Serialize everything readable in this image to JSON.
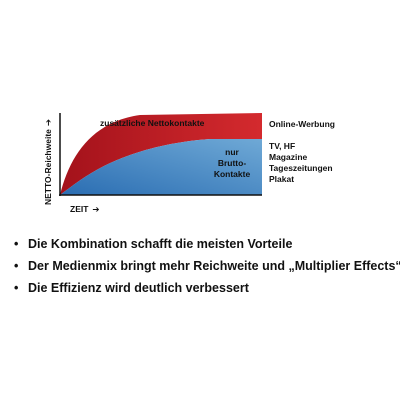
{
  "chart_data": {
    "type": "area",
    "xlabel": "ZEIT",
    "ylabel": "NETTO-Reichweite",
    "arrow_glyph": "➔",
    "series": [
      {
        "name": "zusätzliche Nettokontakte",
        "color": "#cc1f27"
      },
      {
        "name": "nur Brutto-Kontakte",
        "color": "#3a80bf"
      }
    ],
    "region_labels": {
      "red_area": "zusätzliche Nettokontakte",
      "blue_area": [
        "nur",
        "Brutto-",
        "Kontakte"
      ]
    },
    "right_labels": {
      "red": "Online-Werbung",
      "blue": [
        "TV, HF",
        "Magazine",
        "Tageszeitungen",
        "Plakat"
      ]
    }
  },
  "bullets": [
    "Die Kombination schafft die meisten Vorteile",
    "Der Medienmix bringt mehr Reichweite und „Multiplier Effects“",
    "Die Effizienz wird deutlich verbessert"
  ],
  "bullet_glyph": "•"
}
